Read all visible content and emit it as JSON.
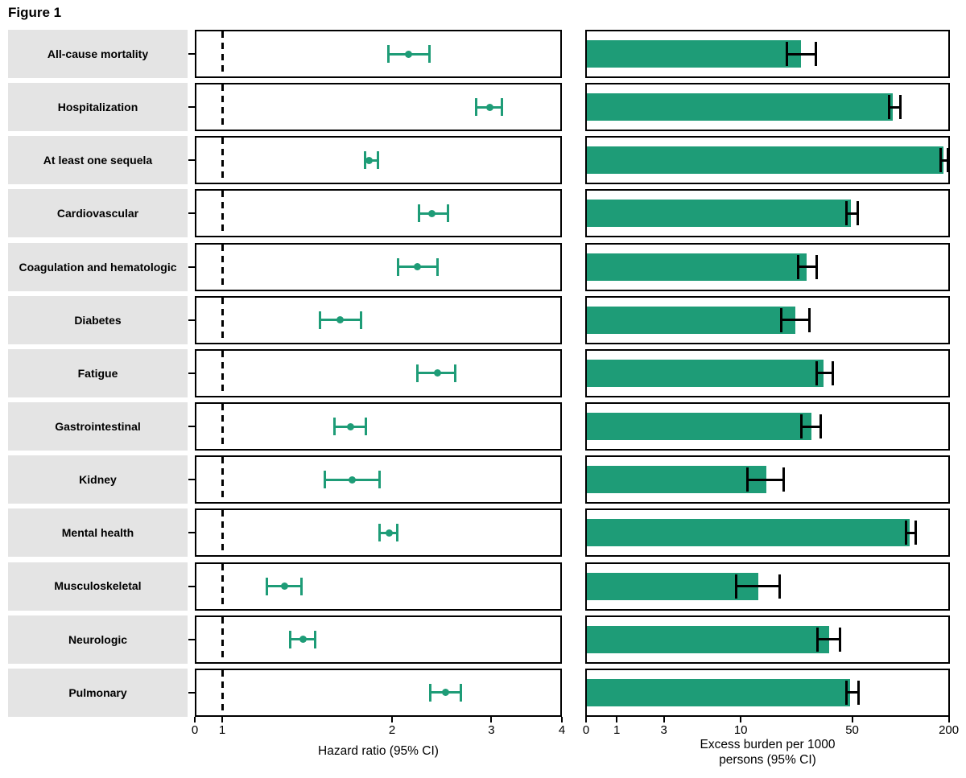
{
  "figure_title": "Figure 1",
  "colors": {
    "series_green": "#1E9C77",
    "label_bg": "#E4E4E4",
    "ink": "#000000"
  },
  "panels": {
    "hazard": {
      "axis_label": "Hazard ratio (95% CI)",
      "tick_labels": [
        "0",
        "1",
        "2",
        "3",
        "4"
      ]
    },
    "burden": {
      "axis_label_line1": "Excess burden per 1000",
      "axis_label_line2": "persons (95% CI)",
      "tick_labels": [
        "0",
        "1",
        "3",
        "10",
        "50",
        "200"
      ]
    }
  },
  "chart_data": {
    "type": "forest+bar",
    "title": "Figure 1",
    "panel_hazard": {
      "type": "scatter",
      "xlabel": "Hazard ratio (95% CI)",
      "xscale": "log10 with compressed zero",
      "xticks": [
        0,
        1,
        2,
        3,
        4
      ],
      "reference_line_x": 1,
      "xlim": [
        0,
        4
      ]
    },
    "panel_burden": {
      "type": "bar",
      "xlabel": "Excess burden per 1000 persons (95% CI)",
      "xscale": "pseudo-log (asinh, sigma 2.2)",
      "xticks": [
        0,
        1,
        3,
        10,
        50,
        200
      ],
      "xlim": [
        0,
        200
      ]
    },
    "rows": [
      {
        "label": "All-cause mortality",
        "hr": 2.14,
        "hr_lo": 1.97,
        "hr_hi": 2.33,
        "burden": 24,
        "burden_lo": 19.5,
        "burden_hi": 29.6
      },
      {
        "label": "Hospitalization",
        "hr": 2.98,
        "hr_lo": 2.82,
        "hr_hi": 3.13,
        "burden": 90,
        "burden_lo": 85,
        "burden_hi": 100
      },
      {
        "label": "At least one sequela",
        "hr": 1.82,
        "hr_lo": 1.79,
        "hr_hi": 1.89,
        "burden": 185,
        "burden_lo": 179,
        "burden_hi": 197
      },
      {
        "label": "Cardiovascular",
        "hr": 2.35,
        "hr_lo": 2.23,
        "hr_hi": 2.51,
        "burden": 49,
        "burden_lo": 46,
        "burden_hi": 54
      },
      {
        "label": "Coagulation and hematologic",
        "hr": 2.22,
        "hr_lo": 2.05,
        "hr_hi": 2.41,
        "burden": 26,
        "burden_lo": 23,
        "burden_hi": 30
      },
      {
        "label": "Diabetes",
        "hr": 1.62,
        "hr_lo": 1.49,
        "hr_hi": 1.76,
        "burden": 22,
        "burden_lo": 18,
        "burden_hi": 27
      },
      {
        "label": "Fatigue",
        "hr": 2.41,
        "hr_lo": 2.22,
        "hr_hi": 2.59,
        "burden": 33,
        "burden_lo": 30,
        "burden_hi": 38
      },
      {
        "label": "Gastrointestinal",
        "hr": 1.69,
        "hr_lo": 1.58,
        "hr_hi": 1.8,
        "burden": 28,
        "burden_lo": 24,
        "burden_hi": 32
      },
      {
        "label": "Kidney",
        "hr": 1.7,
        "hr_lo": 1.52,
        "hr_hi": 1.9,
        "burden": 14.5,
        "burden_lo": 11,
        "burden_hi": 18.7
      },
      {
        "label": "Mental health",
        "hr": 1.98,
        "hr_lo": 1.9,
        "hr_hi": 2.04,
        "burden": 114,
        "burden_lo": 108,
        "burden_hi": 125
      },
      {
        "label": "Musculoskeletal",
        "hr": 1.29,
        "hr_lo": 1.2,
        "hr_hi": 1.38,
        "burden": 13,
        "burden_lo": 9.3,
        "burden_hi": 17.7
      },
      {
        "label": "Neurologic",
        "hr": 1.39,
        "hr_lo": 1.32,
        "hr_hi": 1.46,
        "burden": 36,
        "burden_lo": 30.5,
        "burden_hi": 42
      },
      {
        "label": "Pulmonary",
        "hr": 2.49,
        "hr_lo": 2.34,
        "hr_hi": 2.65,
        "burden": 48.5,
        "burden_lo": 46,
        "burden_hi": 55
      }
    ]
  }
}
